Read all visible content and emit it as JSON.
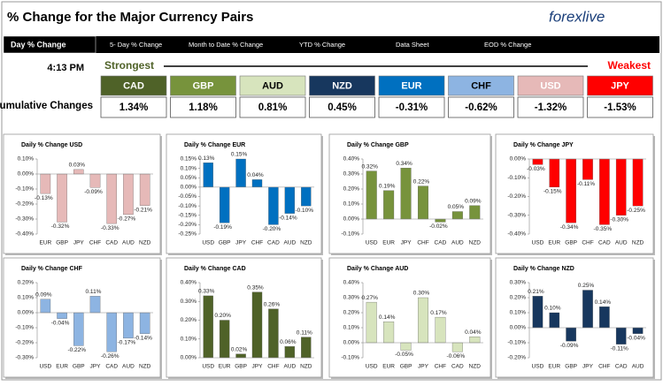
{
  "header": {
    "title": "% Change for the Major Currency Pairs",
    "logo": "forexlive"
  },
  "tabs": [
    "Day % Change",
    "5- Day % Change",
    "Month to Date % Change",
    "YTD % Change",
    "Data Sheet",
    "EOD % Change"
  ],
  "strength": {
    "time": "4:13 PM",
    "strongest": "Strongest",
    "weakest": "Weakest",
    "row_label": "Cumulative Changes",
    "items": [
      {
        "name": "CAD",
        "value_label": "1.34%",
        "color": "#4f6228",
        "text_color": "#ffffff"
      },
      {
        "name": "GBP",
        "value_label": "1.18%",
        "color": "#77933c",
        "text_color": "#ffffff"
      },
      {
        "name": "AUD",
        "value_label": "0.81%",
        "color": "#d7e4bd",
        "text_color": "#000000"
      },
      {
        "name": "NZD",
        "value_label": "0.45%",
        "color": "#17375e",
        "text_color": "#ffffff"
      },
      {
        "name": "EUR",
        "value_label": "-0.31%",
        "color": "#0070c0",
        "text_color": "#ffffff"
      },
      {
        "name": "CHF",
        "value_label": "-0.62%",
        "color": "#8db4e2",
        "text_color": "#000000"
      },
      {
        "name": "USD",
        "value_label": "-1.32%",
        "color": "#e6b9b8",
        "text_color": "#ffffff"
      },
      {
        "name": "JPY",
        "value_label": "-1.53%",
        "color": "#ff0000",
        "text_color": "#ffffff"
      }
    ]
  },
  "chart_data": [
    {
      "type": "bar",
      "title": "Daily % Change USD",
      "color": "#e6b9b8",
      "categories": [
        "EUR",
        "GBP",
        "JPY",
        "CHF",
        "CAD",
        "AUD",
        "NZD"
      ],
      "values": [
        -0.13,
        -0.32,
        0.03,
        -0.09,
        -0.33,
        -0.27,
        -0.21
      ],
      "value_labels": [
        "-0.13%",
        "-0.32%",
        "0.03%",
        "-0.09%",
        "-0.33%",
        "-0.27%",
        "-0.21%"
      ],
      "ylim": [
        -0.4,
        0.1
      ],
      "yticks": [
        {
          "value": 0.1,
          "label": "0.10%"
        },
        {
          "value": 0,
          "label": "0.00%"
        },
        {
          "value": -0.1,
          "label": "-0.10%"
        },
        {
          "value": -0.2,
          "label": "-0.20%"
        },
        {
          "value": -0.3,
          "label": "-0.30%"
        },
        {
          "value": -0.4,
          "label": "-0.40%"
        }
      ]
    },
    {
      "type": "bar",
      "title": "Daily % Change EUR",
      "color": "#0070c0",
      "categories": [
        "USD",
        "GBP",
        "JPY",
        "CHF",
        "CAD",
        "AUD",
        "NZD"
      ],
      "values": [
        0.13,
        -0.19,
        0.15,
        0.04,
        -0.2,
        -0.14,
        -0.1
      ],
      "value_labels": [
        "0.13%",
        "-0.19%",
        "0.15%",
        "0.04%",
        "-0.20%",
        "-0.14%",
        "-0.10%"
      ],
      "ylim": [
        -0.25,
        0.15
      ],
      "yticks": [
        {
          "value": 0.15,
          "label": "0.15%"
        },
        {
          "value": 0.1,
          "label": "0.10%"
        },
        {
          "value": 0.05,
          "label": "0.05%"
        },
        {
          "value": 0,
          "label": "0.00%"
        },
        {
          "value": -0.05,
          "label": "-0.05%"
        },
        {
          "value": -0.1,
          "label": "-0.10%"
        },
        {
          "value": -0.15,
          "label": "-0.15%"
        },
        {
          "value": -0.2,
          "label": "-0.20%"
        },
        {
          "value": -0.25,
          "label": "-0.25%"
        }
      ]
    },
    {
      "type": "bar",
      "title": "Daily % Change GBP",
      "color": "#77933c",
      "categories": [
        "USD",
        "EUR",
        "JPY",
        "CHF",
        "CAD",
        "AUD",
        "NZD"
      ],
      "values": [
        0.32,
        0.19,
        0.34,
        0.22,
        -0.02,
        0.05,
        0.09
      ],
      "value_labels": [
        "0.32%",
        "0.19%",
        "0.34%",
        "0.22%",
        "-0.02%",
        "0.05%",
        "0.09%"
      ],
      "ylim": [
        -0.1,
        0.4
      ],
      "yticks": [
        {
          "value": 0.4,
          "label": "0.40%"
        },
        {
          "value": 0.3,
          "label": "0.30%"
        },
        {
          "value": 0.2,
          "label": "0.20%"
        },
        {
          "value": 0.1,
          "label": "0.10%"
        },
        {
          "value": 0,
          "label": "0.00%"
        },
        {
          "value": -0.1,
          "label": "-0.10%"
        }
      ]
    },
    {
      "type": "bar",
      "title": "Daily % Change JPY",
      "color": "#ff0000",
      "categories": [
        "USD",
        "EUR",
        "GBP",
        "CHF",
        "CAD",
        "AUD",
        "NZD"
      ],
      "values": [
        -0.03,
        -0.15,
        -0.34,
        -0.11,
        -0.35,
        -0.3,
        -0.25
      ],
      "value_labels": [
        "-0.03%",
        "-0.15%",
        "-0.34%",
        "-0.11%",
        "-0.35%",
        "-0.30%",
        "-0.25%"
      ],
      "ylim": [
        -0.4,
        0
      ],
      "yticks": [
        {
          "value": 0,
          "label": "0.00%"
        },
        {
          "value": -0.1,
          "label": "-0.10%"
        },
        {
          "value": -0.2,
          "label": "-0.20%"
        },
        {
          "value": -0.3,
          "label": "-0.30%"
        },
        {
          "value": -0.4,
          "label": "-0.40%"
        }
      ]
    },
    {
      "type": "bar",
      "title": "Daily % Change CHF",
      "color": "#8db4e2",
      "categories": [
        "USD",
        "EUR",
        "GBP",
        "JPY",
        "CAD",
        "AUD",
        "NZD"
      ],
      "values": [
        0.09,
        -0.04,
        -0.22,
        0.11,
        -0.26,
        -0.17,
        -0.14
      ],
      "value_labels": [
        "0.09%",
        "-0.04%",
        "-0.22%",
        "0.11%",
        "-0.26%",
        "-0.17%",
        "-0.14%"
      ],
      "ylim": [
        -0.3,
        0.2
      ],
      "yticks": [
        {
          "value": 0.2,
          "label": "0.20%"
        },
        {
          "value": 0.1,
          "label": "0.10%"
        },
        {
          "value": 0,
          "label": "0.00%"
        },
        {
          "value": -0.1,
          "label": "-0.10%"
        },
        {
          "value": -0.2,
          "label": "-0.20%"
        },
        {
          "value": -0.3,
          "label": "-0.30%"
        }
      ]
    },
    {
      "type": "bar",
      "title": "Daily % Change CAD",
      "color": "#4f6228",
      "categories": [
        "USD",
        "EUR",
        "GBP",
        "JPY",
        "CHF",
        "AUD",
        "NZD"
      ],
      "values": [
        0.33,
        0.2,
        0.02,
        0.35,
        0.26,
        0.06,
        0.11
      ],
      "value_labels": [
        "0.33%",
        "0.20%",
        "0.02%",
        "0.35%",
        "0.26%",
        "0.06%",
        "0.11%"
      ],
      "ylim": [
        0,
        0.4
      ],
      "yticks": [
        {
          "value": 0.4,
          "label": "0.40%"
        },
        {
          "value": 0.3,
          "label": "0.30%"
        },
        {
          "value": 0.2,
          "label": "0.20%"
        },
        {
          "value": 0.1,
          "label": "0.10%"
        },
        {
          "value": 0,
          "label": "0.00%"
        }
      ]
    },
    {
      "type": "bar",
      "title": "Daily % Change AUD",
      "color": "#d7e4bd",
      "categories": [
        "USD",
        "EUR",
        "GBP",
        "JPY",
        "CHF",
        "CAD",
        "NZD"
      ],
      "values": [
        0.27,
        0.14,
        -0.05,
        0.3,
        0.17,
        -0.06,
        0.04
      ],
      "value_labels": [
        "0.27%",
        "0.14%",
        "-0.05%",
        "0.30%",
        "0.17%",
        "-0.06%",
        "0.04%"
      ],
      "ylim": [
        -0.1,
        0.4
      ],
      "yticks": [
        {
          "value": 0.4,
          "label": "0.40%"
        },
        {
          "value": 0.3,
          "label": "0.30%"
        },
        {
          "value": 0.2,
          "label": "0.20%"
        },
        {
          "value": 0.1,
          "label": "0.10%"
        },
        {
          "value": 0,
          "label": "0.00%"
        },
        {
          "value": -0.1,
          "label": "-0.10%"
        }
      ]
    },
    {
      "type": "bar",
      "title": "Daily % Change NZD",
      "color": "#17375e",
      "categories": [
        "USD",
        "EUR",
        "GBP",
        "JPY",
        "CHF",
        "CAD",
        "AUD"
      ],
      "values": [
        0.21,
        0.1,
        -0.09,
        0.25,
        0.14,
        -0.11,
        -0.04
      ],
      "value_labels": [
        "0.21%",
        "0.10%",
        "-0.09%",
        "0.25%",
        "0.14%",
        "-0.11%",
        "-0.04%"
      ],
      "ylim": [
        -0.2,
        0.3
      ],
      "yticks": [
        {
          "value": 0.3,
          "label": "0.30%"
        },
        {
          "value": 0.2,
          "label": "0.20%"
        },
        {
          "value": 0.1,
          "label": "0.10%"
        },
        {
          "value": 0,
          "label": "0.00%"
        },
        {
          "value": -0.1,
          "label": "-0.10%"
        },
        {
          "value": -0.2,
          "label": "-0.20%"
        }
      ]
    }
  ]
}
